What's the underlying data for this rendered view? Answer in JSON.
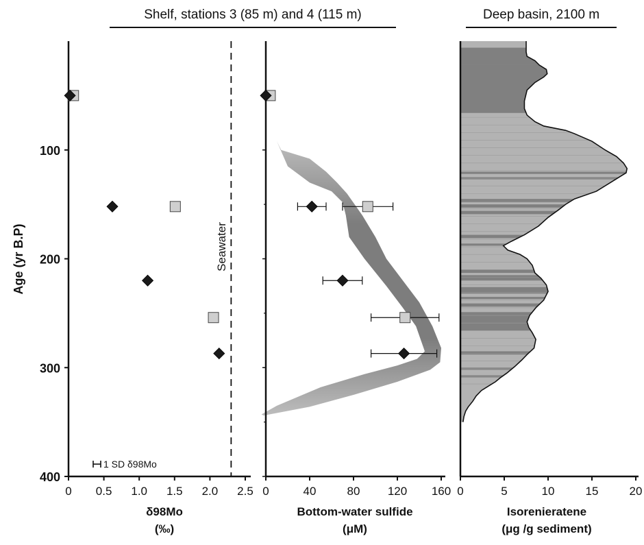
{
  "chart_data": [
    {
      "type": "scatter",
      "header": "Shelf, stations 3 (85 m) and 4 (115 m)",
      "ylabel": "Age (yr B.P)",
      "ylim": [
        0,
        400
      ],
      "yticks": [
        100,
        200,
        300,
        400
      ],
      "xlabel_line1": "δ98Mo",
      "xlabel_line2": "(‰)",
      "xlim": [
        0,
        2.5
      ],
      "xticks": [
        "0",
        "0.5",
        "1.0",
        "1.5",
        "2.0",
        "2.5"
      ],
      "reference_line": {
        "label": "Seawater",
        "x": 2.3
      },
      "sd_note": "1 SD δ98Mo",
      "series": [
        {
          "marker": "diamond",
          "color": "#1a1a1a",
          "points": [
            [
              0.02,
              50
            ],
            [
              0.62,
              152
            ],
            [
              1.12,
              220
            ],
            [
              2.13,
              287
            ]
          ]
        },
        {
          "marker": "square",
          "color": "#cfcfcf",
          "points": [
            [
              0.07,
              50
            ],
            [
              1.51,
              152
            ],
            [
              2.05,
              254
            ]
          ]
        }
      ]
    },
    {
      "type": "scatter",
      "xlabel_line1": "Bottom-water sulfide",
      "xlabel_line2": "(μM)",
      "xlim": [
        0,
        160
      ],
      "xticks": [
        "0",
        "40",
        "80",
        "120",
        "160"
      ],
      "envelope": {
        "color_dark": "#7d7d7d",
        "color_light": "#bdbdbd",
        "left": [
          [
            10,
            92
          ],
          [
            20,
            115
          ],
          [
            40,
            130
          ],
          [
            60,
            138
          ],
          [
            70,
            148
          ],
          [
            73,
            160
          ],
          [
            76,
            180
          ],
          [
            90,
            200
          ],
          [
            110,
            225
          ],
          [
            125,
            245
          ],
          [
            137,
            262
          ],
          [
            145,
            285
          ],
          [
            138,
            292
          ],
          [
            120,
            298
          ],
          [
            90,
            306
          ],
          [
            50,
            318
          ],
          [
            10,
            335
          ],
          [
            -4,
            343
          ]
        ],
        "right": [
          [
            14,
            100
          ],
          [
            40,
            108
          ],
          [
            55,
            120
          ],
          [
            65,
            130
          ],
          [
            74,
            140
          ],
          [
            88,
            160
          ],
          [
            100,
            180
          ],
          [
            110,
            200
          ],
          [
            125,
            220
          ],
          [
            140,
            240
          ],
          [
            152,
            262
          ],
          [
            160,
            282
          ],
          [
            159,
            295
          ],
          [
            150,
            302
          ],
          [
            120,
            313
          ],
          [
            80,
            325
          ],
          [
            40,
            336
          ],
          [
            -2,
            344
          ]
        ]
      },
      "series": [
        {
          "marker": "diamond",
          "color": "#1a1a1a",
          "points": [
            [
              0,
              50,
              null
            ],
            [
              42,
              152,
              13
            ],
            [
              70,
              220,
              18
            ],
            [
              126,
              287,
              30
            ]
          ]
        },
        {
          "marker": "square",
          "color": "#cfcfcf",
          "points": [
            [
              4,
              50,
              null
            ],
            [
              93,
              152,
              23
            ],
            [
              127,
              254,
              31
            ]
          ]
        }
      ]
    },
    {
      "type": "area",
      "header": "Deep basin, 2100 m",
      "xlabel_line1": "Isorenieratene",
      "xlabel_line2": "(μg /g sediment)",
      "xlim": [
        0,
        20
      ],
      "xticks": [
        "0",
        "5",
        "10",
        "15",
        "20"
      ],
      "profile": [
        [
          0,
          7.5
        ],
        [
          10,
          7.5
        ],
        [
          14,
          7.6
        ],
        [
          18,
          8.5
        ],
        [
          22,
          9.0
        ],
        [
          26,
          9.8
        ],
        [
          30,
          9.9
        ],
        [
          33,
          9.5
        ],
        [
          38,
          8.5
        ],
        [
          45,
          7.6
        ],
        [
          55,
          7.3
        ],
        [
          62,
          7.3
        ],
        [
          68,
          7.6
        ],
        [
          74,
          8.5
        ],
        [
          78,
          9.5
        ],
        [
          82,
          12.0
        ],
        [
          85,
          13.0
        ],
        [
          92,
          15.0
        ],
        [
          100,
          16.5
        ],
        [
          106,
          17.8
        ],
        [
          112,
          18.6
        ],
        [
          117,
          19.0
        ],
        [
          121,
          18.9
        ],
        [
          128,
          17.5
        ],
        [
          138,
          15.5
        ],
        [
          145,
          13.0
        ],
        [
          150,
          12.0
        ],
        [
          155,
          11.2
        ],
        [
          162,
          10.0
        ],
        [
          170,
          8.9
        ],
        [
          178,
          7.3
        ],
        [
          184,
          5.8
        ],
        [
          188,
          4.9
        ],
        [
          192,
          5.4
        ],
        [
          196,
          6.8
        ],
        [
          200,
          7.6
        ],
        [
          206,
          8.2
        ],
        [
          213,
          8.5
        ],
        [
          218,
          9.2
        ],
        [
          224,
          9.8
        ],
        [
          230,
          10.0
        ],
        [
          238,
          9.5
        ],
        [
          245,
          8.6
        ],
        [
          252,
          7.9
        ],
        [
          258,
          7.6
        ],
        [
          263,
          7.8
        ],
        [
          268,
          8.2
        ],
        [
          274,
          8.6
        ],
        [
          282,
          8.4
        ],
        [
          288,
          7.6
        ],
        [
          293,
          7.0
        ],
        [
          299,
          6.2
        ],
        [
          305,
          5.3
        ],
        [
          309,
          4.6
        ],
        [
          313,
          4.0
        ],
        [
          317,
          3.2
        ],
        [
          321,
          2.4
        ],
        [
          326,
          1.8
        ],
        [
          331,
          1.4
        ],
        [
          336,
          0.9
        ],
        [
          340,
          0.6
        ],
        [
          345,
          0.4
        ],
        [
          350,
          0.3
        ]
      ],
      "dark_bands": [
        [
          6,
          22
        ],
        [
          22,
          66
        ],
        [
          120,
          122
        ],
        [
          125,
          127
        ],
        [
          145,
          148
        ],
        [
          150,
          153
        ],
        [
          156,
          159
        ],
        [
          178,
          181
        ],
        [
          186,
          188
        ],
        [
          210,
          213
        ],
        [
          215,
          220
        ],
        [
          226,
          232
        ],
        [
          235,
          237
        ],
        [
          241,
          244
        ],
        [
          249,
          266
        ],
        [
          285,
          288
        ],
        [
          300,
          302
        ],
        [
          307,
          309
        ]
      ],
      "color_dark": "#808080",
      "color_light": "#b3b3b3"
    }
  ]
}
